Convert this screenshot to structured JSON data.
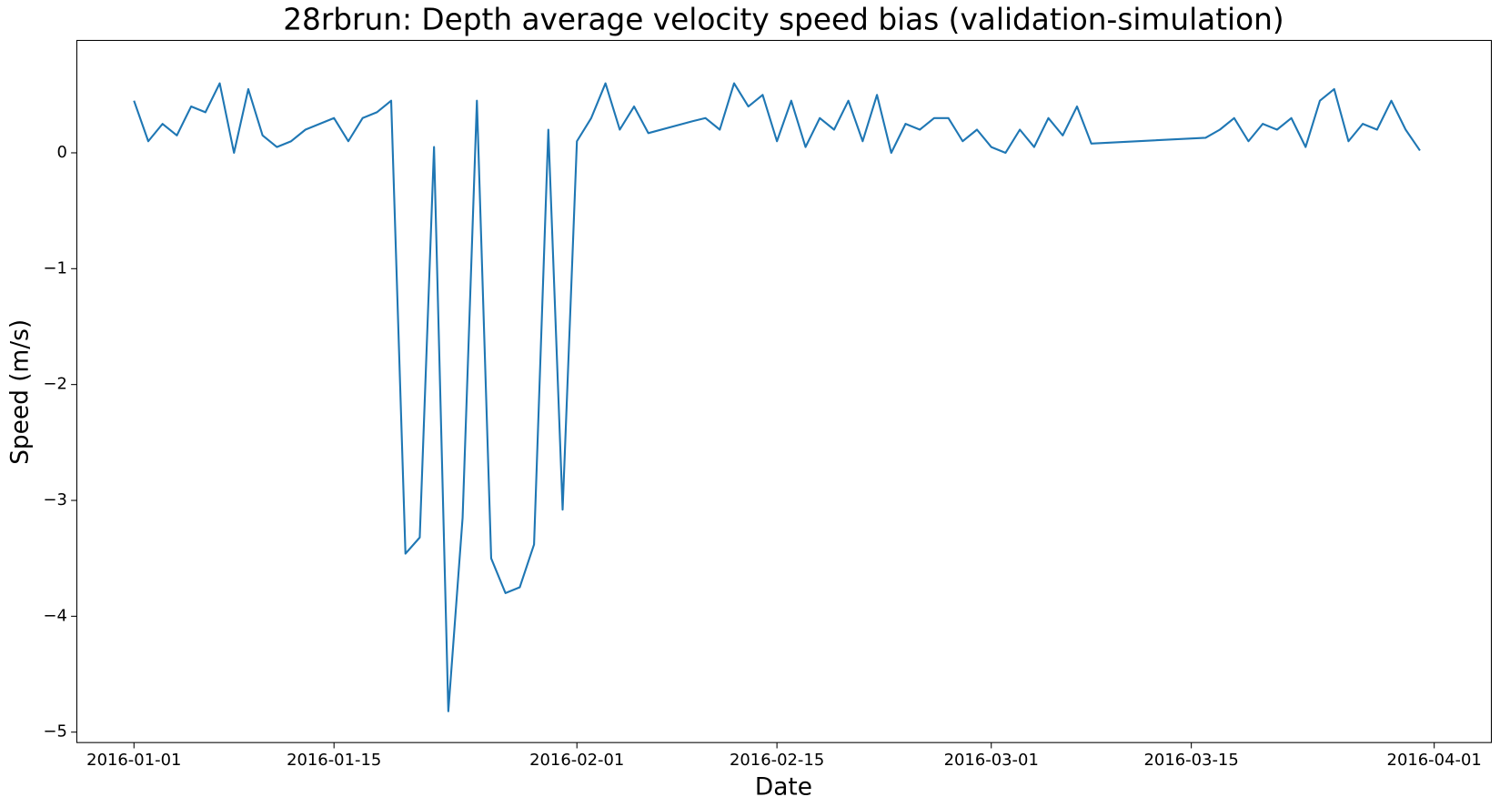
{
  "chart_data": {
    "type": "line",
    "title": "28rbrun: Depth average velocity speed bias (validation-simulation)",
    "xlabel": "Date",
    "ylabel": "Speed (m/s)",
    "x": [
      "2016-01-01",
      "2016-01-02",
      "2016-01-03",
      "2016-01-04",
      "2016-01-05",
      "2016-01-06",
      "2016-01-07",
      "2016-01-08",
      "2016-01-09",
      "2016-01-10",
      "2016-01-11",
      "2016-01-12",
      "2016-01-13",
      "2016-01-14",
      "2016-01-15",
      "2016-01-16",
      "2016-01-17",
      "2016-01-18",
      "2016-01-19",
      "2016-01-20",
      "2016-01-21",
      "2016-01-22",
      "2016-01-23",
      "2016-01-24",
      "2016-01-25",
      "2016-01-26",
      "2016-01-27",
      "2016-01-28",
      "2016-01-29",
      "2016-01-30",
      "2016-01-31",
      "2016-02-01",
      "2016-02-02",
      "2016-02-03",
      "2016-02-04",
      "2016-02-05",
      "2016-02-06",
      "2016-02-09",
      "2016-02-10",
      "2016-02-11",
      "2016-02-12",
      "2016-02-13",
      "2016-02-14",
      "2016-02-15",
      "2016-02-16",
      "2016-02-17",
      "2016-02-18",
      "2016-02-19",
      "2016-02-20",
      "2016-02-21",
      "2016-02-22",
      "2016-02-23",
      "2016-02-24",
      "2016-02-25",
      "2016-02-26",
      "2016-02-27",
      "2016-02-28",
      "2016-02-29",
      "2016-03-01",
      "2016-03-02",
      "2016-03-03",
      "2016-03-04",
      "2016-03-05",
      "2016-03-06",
      "2016-03-07",
      "2016-03-08",
      "2016-03-16",
      "2016-03-17",
      "2016-03-18",
      "2016-03-19",
      "2016-03-20",
      "2016-03-21",
      "2016-03-22",
      "2016-03-23",
      "2016-03-24",
      "2016-03-25",
      "2016-03-26",
      "2016-03-27",
      "2016-03-28",
      "2016-03-29",
      "2016-03-30",
      "2016-03-31"
    ],
    "series": [
      {
        "name": "Speed bias",
        "color": "#1f77b4",
        "values": [
          0.45,
          0.1,
          0.25,
          0.15,
          0.4,
          0.35,
          0.6,
          0.0,
          0.55,
          0.15,
          0.05,
          0.1,
          0.2,
          0.25,
          0.3,
          0.1,
          0.3,
          0.35,
          0.45,
          -3.46,
          -3.32,
          0.05,
          -4.82,
          -3.15,
          0.45,
          -3.5,
          -3.8,
          -3.75,
          -3.38,
          0.2,
          -3.08,
          0.1,
          0.3,
          0.6,
          0.2,
          0.4,
          0.17,
          0.27,
          0.3,
          0.2,
          0.6,
          0.4,
          0.5,
          0.1,
          0.45,
          0.05,
          0.3,
          0.2,
          0.45,
          0.1,
          0.5,
          0.0,
          0.25,
          0.2,
          0.3,
          0.3,
          0.1,
          0.2,
          0.05,
          0.0,
          0.2,
          0.05,
          0.3,
          0.15,
          0.4,
          0.08,
          0.13,
          0.2,
          0.3,
          0.1,
          0.25,
          0.2,
          0.3,
          0.05,
          0.45,
          0.55,
          0.1,
          0.25,
          0.2,
          0.45,
          0.2,
          0.02
        ]
      }
    ],
    "xlim": [
      "2015-12-28",
      "2016-04-05"
    ],
    "xticks": [
      "2016-01-01",
      "2016-01-15",
      "2016-02-01",
      "2016-02-15",
      "2016-03-01",
      "2016-03-15",
      "2016-04-01"
    ],
    "ylim": [
      -5.09,
      0.97
    ],
    "yticks": [
      0,
      {
        "value": -1,
        "label": "−1"
      },
      {
        "value": -2,
        "label": "−2"
      },
      {
        "value": -3,
        "label": "−3"
      },
      {
        "value": -4,
        "label": "−4"
      },
      {
        "value": -5,
        "label": "−5"
      }
    ]
  }
}
